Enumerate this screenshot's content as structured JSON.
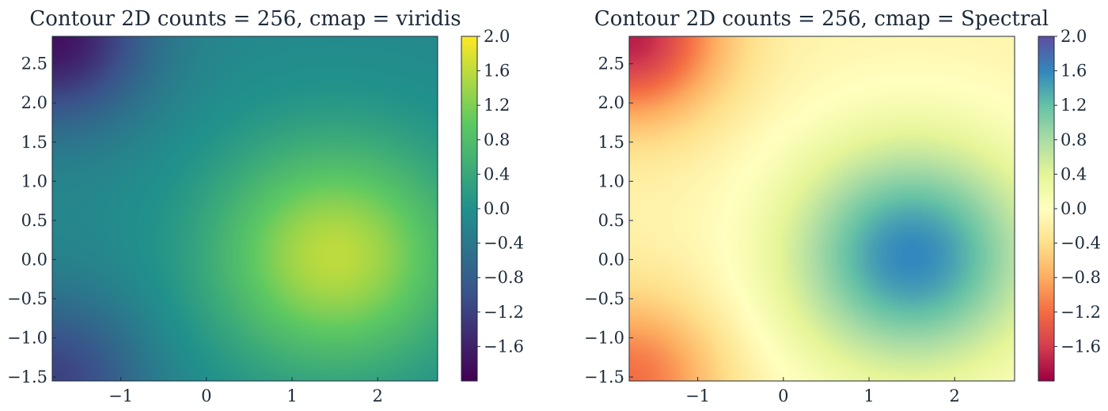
{
  "chart_data": [
    {
      "type": "heatmap",
      "title": "Contour 2D counts = 256, cmap = viridis",
      "cmap": "viridis",
      "contour_levels": 256,
      "xlim": [
        -1.8,
        2.7
      ],
      "ylim": [
        -1.55,
        2.85
      ],
      "xticks": [
        "−1",
        "0",
        "1",
        "2"
      ],
      "yticks": [
        "2.5",
        "2.0",
        "1.5",
        "1.0",
        "0.5",
        "0.0",
        "−0.5",
        "−1.0",
        "−1.5"
      ],
      "colorbar": {
        "range": [
          -2.0,
          2.0
        ],
        "ticks": [
          "2.0",
          "1.6",
          "1.2",
          "0.8",
          "0.4",
          "0.0",
          "−0.4",
          "−0.8",
          "−1.2",
          "−1.6"
        ]
      },
      "field_features": [
        {
          "feature": "maximum",
          "x": 1.5,
          "y": 0.05,
          "value": 1.6
        },
        {
          "feature": "minimum",
          "x": -1.8,
          "y": 2.85,
          "value": -1.8
        },
        {
          "feature": "minimum",
          "x": -1.8,
          "y": -1.55,
          "value": -1.2
        }
      ]
    },
    {
      "type": "heatmap",
      "title": "Contour 2D counts = 256, cmap = Spectral",
      "cmap": "Spectral",
      "contour_levels": 256,
      "xlim": [
        -1.8,
        2.7
      ],
      "ylim": [
        -1.55,
        2.85
      ],
      "xticks": [
        "−1",
        "0",
        "1",
        "2"
      ],
      "yticks": [
        "2.5",
        "2.0",
        "1.5",
        "1.0",
        "0.5",
        "0.0",
        "−0.5",
        "−1.0",
        "−1.5"
      ],
      "colorbar": {
        "range": [
          -2.0,
          2.0
        ],
        "ticks": [
          "2.0",
          "1.6",
          "1.2",
          "0.8",
          "0.4",
          "0.0",
          "−0.4",
          "−0.8",
          "−1.2",
          "−1.6"
        ]
      },
      "field_features": [
        {
          "feature": "maximum",
          "x": 1.5,
          "y": 0.05,
          "value": 1.6
        },
        {
          "feature": "minimum",
          "x": -1.8,
          "y": 2.85,
          "value": -1.8
        },
        {
          "feature": "minimum",
          "x": -1.8,
          "y": -1.55,
          "value": -1.2
        }
      ]
    }
  ],
  "colors": {
    "viridis": [
      "#440154",
      "#3b528b",
      "#21918c",
      "#5ec962",
      "#fde725"
    ],
    "Spectral": [
      "#9e0142",
      "#d53e4f",
      "#f46d43",
      "#fdae61",
      "#fee08b",
      "#ffffbf",
      "#e6f598",
      "#abdda4",
      "#66c2a5",
      "#3288bd",
      "#5e4fa2"
    ]
  }
}
